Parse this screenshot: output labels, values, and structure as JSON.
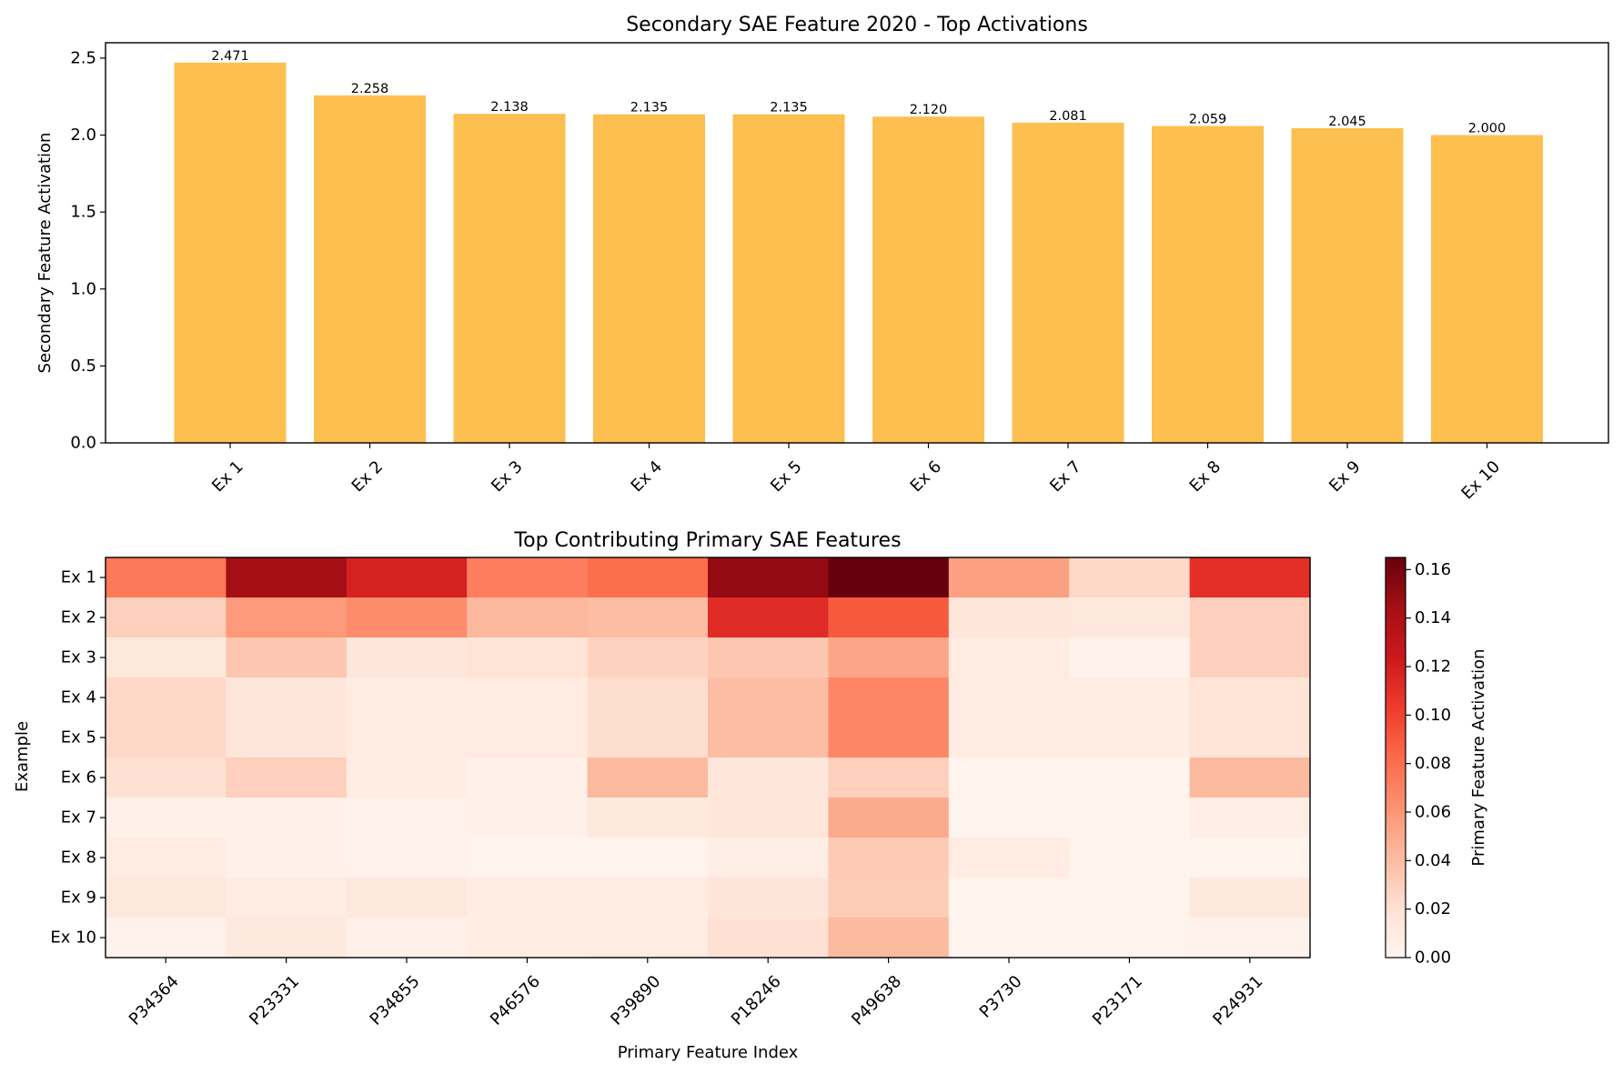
{
  "colors": {
    "bar": "#fdbf4f",
    "axis": "#000000",
    "background": "#ffffff",
    "colormap": "Reds"
  },
  "chart_data": [
    {
      "type": "bar",
      "title": "Secondary SAE Feature 2020 - Top Activations",
      "xlabel": "",
      "ylabel": "Secondary Feature Activation",
      "categories": [
        "Ex 1",
        "Ex 2",
        "Ex 3",
        "Ex 4",
        "Ex 5",
        "Ex 6",
        "Ex 7",
        "Ex 8",
        "Ex 9",
        "Ex 10"
      ],
      "values": [
        2.471,
        2.258,
        2.138,
        2.135,
        2.135,
        2.12,
        2.081,
        2.059,
        2.045,
        2.0
      ],
      "value_labels": [
        "2.471",
        "2.258",
        "2.138",
        "2.135",
        "2.135",
        "2.120",
        "2.081",
        "2.059",
        "2.045",
        "2.000"
      ],
      "ylim": [
        0,
        2.6
      ],
      "yticks": [
        0.0,
        0.5,
        1.0,
        1.5,
        2.0,
        2.5
      ],
      "ytick_labels": [
        "0.0",
        "0.5",
        "1.0",
        "1.5",
        "2.0",
        "2.5"
      ],
      "grid": false
    },
    {
      "type": "heatmap",
      "title": "Top Contributing Primary SAE Features",
      "xlabel": "Primary Feature Index",
      "ylabel": "Example",
      "x_categories": [
        "P34364",
        "P23331",
        "P34855",
        "P46576",
        "P39890",
        "P18246",
        "P49638",
        "P3730",
        "P23171",
        "P24931"
      ],
      "y_categories": [
        "Ex 1",
        "Ex 2",
        "Ex 3",
        "Ex 4",
        "Ex 5",
        "Ex 6",
        "Ex 7",
        "Ex 8",
        "Ex 9",
        "Ex 10"
      ],
      "values": [
        [
          0.075,
          0.145,
          0.118,
          0.072,
          0.08,
          0.15,
          0.165,
          0.055,
          0.025,
          0.11
        ],
        [
          0.03,
          0.058,
          0.065,
          0.043,
          0.04,
          0.112,
          0.09,
          0.015,
          0.013,
          0.03
        ],
        [
          0.013,
          0.035,
          0.015,
          0.018,
          0.028,
          0.035,
          0.052,
          0.01,
          0.003,
          0.03
        ],
        [
          0.025,
          0.015,
          0.01,
          0.01,
          0.022,
          0.04,
          0.068,
          0.01,
          0.008,
          0.018
        ],
        [
          0.025,
          0.015,
          0.01,
          0.01,
          0.022,
          0.04,
          0.068,
          0.01,
          0.008,
          0.018
        ],
        [
          0.02,
          0.03,
          0.008,
          0.005,
          0.042,
          0.015,
          0.03,
          0.002,
          0.002,
          0.042
        ],
        [
          0.005,
          0.005,
          0.003,
          0.005,
          0.012,
          0.015,
          0.05,
          0.002,
          0.002,
          0.007
        ],
        [
          0.01,
          0.005,
          0.003,
          0.002,
          0.002,
          0.007,
          0.033,
          0.01,
          0.002,
          0.002
        ],
        [
          0.013,
          0.01,
          0.013,
          0.01,
          0.01,
          0.016,
          0.032,
          0.002,
          0.002,
          0.013
        ],
        [
          0.003,
          0.012,
          0.005,
          0.008,
          0.01,
          0.02,
          0.042,
          0.002,
          0.002,
          0.003
        ]
      ],
      "colorbar": {
        "label": "Primary Feature Activation",
        "range": [
          0,
          0.165
        ],
        "ticks": [
          0.0,
          0.02,
          0.04,
          0.06,
          0.08,
          0.1,
          0.12,
          0.14,
          0.16
        ],
        "tick_labels": [
          "0.00",
          "0.02",
          "0.04",
          "0.06",
          "0.08",
          "0.10",
          "0.12",
          "0.14",
          "0.16"
        ]
      }
    }
  ]
}
